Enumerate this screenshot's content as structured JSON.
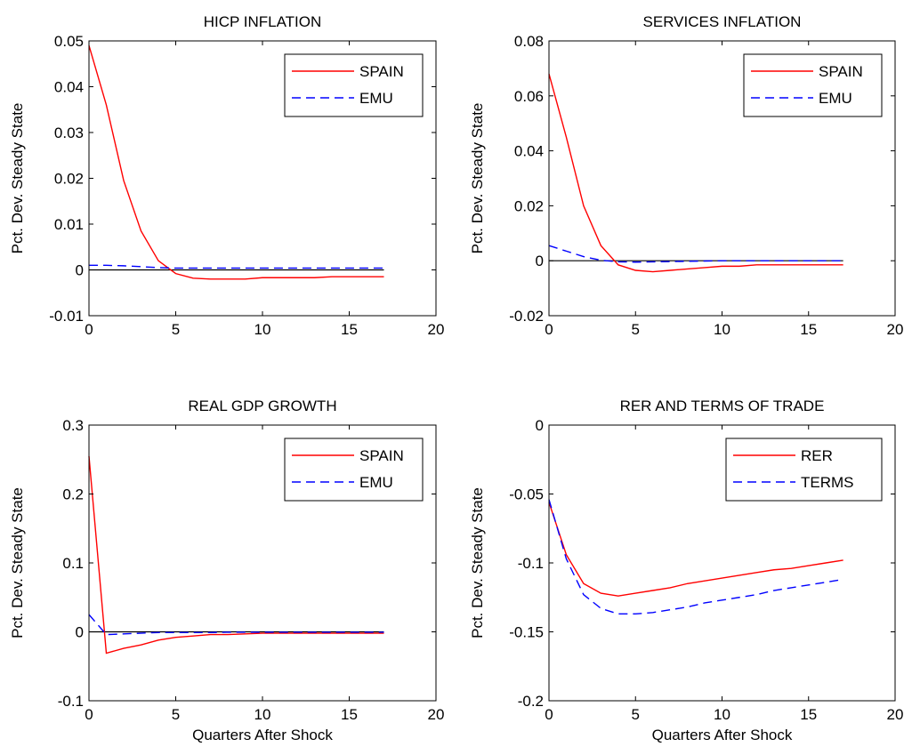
{
  "chart_data": [
    {
      "type": "line",
      "title": "HICP INFLATION",
      "xlabel": "",
      "ylabel": "Pct. Dev. Steady State",
      "xlim": [
        0,
        20
      ],
      "ylim": [
        -0.01,
        0.05
      ],
      "xticks": [
        0,
        5,
        10,
        15,
        20
      ],
      "yticks": [
        -0.01,
        0,
        0.01,
        0.02,
        0.03,
        0.04,
        0.05
      ],
      "ytick_labels": [
        "-0.01",
        "0",
        "0.01",
        "0.02",
        "0.03",
        "0.04",
        "0.05"
      ],
      "xtick_labels": [
        "0",
        "5",
        "10",
        "15",
        "20"
      ],
      "legend_position": "top-right",
      "zero_line": true,
      "x": [
        0,
        1,
        2,
        3,
        4,
        5,
        6,
        7,
        8,
        9,
        10,
        11,
        12,
        13,
        14,
        15,
        16,
        17
      ],
      "series": [
        {
          "name": "SPAIN",
          "color": "#ff0000",
          "style": "solid",
          "values": [
            0.049,
            0.036,
            0.0195,
            0.0085,
            0.002,
            -0.0008,
            -0.0018,
            -0.002,
            -0.002,
            -0.002,
            -0.0017,
            -0.0017,
            -0.0017,
            -0.0017,
            -0.0015,
            -0.0015,
            -0.0015,
            -0.0015
          ]
        },
        {
          "name": "EMU",
          "color": "#0000ff",
          "style": "dashed",
          "values": [
            0.001,
            0.001,
            0.0009,
            0.0007,
            0.0005,
            0.0004,
            0.0004,
            0.0004,
            0.0004,
            0.0004,
            0.0004,
            0.0004,
            0.0004,
            0.0004,
            0.0004,
            0.0004,
            0.0004,
            0.0004
          ]
        }
      ]
    },
    {
      "type": "line",
      "title": "SERVICES INFLATION",
      "xlabel": "",
      "ylabel": "Pct. Dev. Steady State",
      "xlim": [
        0,
        20
      ],
      "ylim": [
        -0.02,
        0.08
      ],
      "xticks": [
        0,
        5,
        10,
        15,
        20
      ],
      "yticks": [
        -0.02,
        0,
        0.02,
        0.04,
        0.06,
        0.08
      ],
      "ytick_labels": [
        "-0.02",
        "0",
        "0.02",
        "0.04",
        "0.06",
        "0.08"
      ],
      "xtick_labels": [
        "0",
        "5",
        "10",
        "15",
        "20"
      ],
      "legend_position": "top-right",
      "zero_line": true,
      "x": [
        0,
        1,
        2,
        3,
        4,
        5,
        6,
        7,
        8,
        9,
        10,
        11,
        12,
        13,
        14,
        15,
        16,
        17
      ],
      "series": [
        {
          "name": "SPAIN",
          "color": "#ff0000",
          "style": "solid",
          "values": [
            0.068,
            0.045,
            0.02,
            0.0055,
            -0.0015,
            -0.0035,
            -0.004,
            -0.0035,
            -0.003,
            -0.0025,
            -0.002,
            -0.002,
            -0.0015,
            -0.0015,
            -0.0015,
            -0.0015,
            -0.0015,
            -0.0015
          ]
        },
        {
          "name": "EMU",
          "color": "#0000ff",
          "style": "dashed",
          "values": [
            0.0055,
            0.0035,
            0.0015,
            0.0002,
            -0.0004,
            -0.0005,
            -0.0004,
            -0.0003,
            -0.0002,
            -0.0001,
            0,
            0,
            0,
            0,
            0,
            0,
            0,
            0
          ]
        }
      ]
    },
    {
      "type": "line",
      "title": "REAL GDP GROWTH",
      "xlabel": "Quarters After Shock",
      "ylabel": "Pct. Dev. Steady State",
      "xlim": [
        0,
        20
      ],
      "ylim": [
        -0.1,
        0.3
      ],
      "xticks": [
        0,
        5,
        10,
        15,
        20
      ],
      "yticks": [
        -0.1,
        0,
        0.1,
        0.2,
        0.3
      ],
      "ytick_labels": [
        "-0.1",
        "0",
        "0.1",
        "0.2",
        "0.3"
      ],
      "xtick_labels": [
        "0",
        "5",
        "10",
        "15",
        "20"
      ],
      "legend_position": "top-right",
      "zero_line": true,
      "x": [
        0,
        1,
        2,
        3,
        4,
        5,
        6,
        7,
        8,
        9,
        10,
        11,
        12,
        13,
        14,
        15,
        16,
        17
      ],
      "series": [
        {
          "name": "SPAIN",
          "color": "#ff0000",
          "style": "solid",
          "values": [
            0.255,
            -0.031,
            -0.024,
            -0.019,
            -0.012,
            -0.008,
            -0.006,
            -0.004,
            -0.004,
            -0.003,
            -0.002,
            -0.002,
            -0.002,
            -0.002,
            -0.002,
            -0.002,
            -0.002,
            -0.002
          ]
        },
        {
          "name": "EMU",
          "color": "#0000ff",
          "style": "dashed",
          "values": [
            0.025,
            -0.004,
            -0.003,
            -0.002,
            -0.001,
            -0.001,
            -0.001,
            -0.001,
            -0.0005,
            -0.0005,
            -0.0005,
            -0.0005,
            -0.0005,
            -0.0005,
            -0.0005,
            -0.0005,
            -0.0005,
            -0.0005
          ]
        }
      ]
    },
    {
      "type": "line",
      "title": "RER AND TERMS OF TRADE",
      "xlabel": "Quarters After Shock",
      "ylabel": "Pct. Dev. Steady State",
      "xlim": [
        0,
        20
      ],
      "ylim": [
        -0.2,
        0
      ],
      "xticks": [
        0,
        5,
        10,
        15,
        20
      ],
      "yticks": [
        -0.2,
        -0.15,
        -0.1,
        -0.05,
        0
      ],
      "ytick_labels": [
        "-0.2",
        "-0.15",
        "-0.1",
        "-0.05",
        "0"
      ],
      "xtick_labels": [
        "0",
        "5",
        "10",
        "15",
        "20"
      ],
      "legend_position": "top-right",
      "zero_line": false,
      "x": [
        0,
        1,
        2,
        3,
        4,
        5,
        6,
        7,
        8,
        9,
        10,
        11,
        12,
        13,
        14,
        15,
        16,
        17
      ],
      "series": [
        {
          "name": "RER",
          "color": "#ff0000",
          "style": "solid",
          "values": [
            -0.056,
            -0.094,
            -0.115,
            -0.122,
            -0.124,
            -0.122,
            -0.12,
            -0.118,
            -0.115,
            -0.113,
            -0.111,
            -0.109,
            -0.107,
            -0.105,
            -0.104,
            -0.102,
            -0.1,
            -0.098
          ]
        },
        {
          "name": "TERMS",
          "color": "#0000ff",
          "style": "dashed",
          "values": [
            -0.054,
            -0.097,
            -0.123,
            -0.133,
            -0.137,
            -0.137,
            -0.136,
            -0.134,
            -0.132,
            -0.129,
            -0.127,
            -0.125,
            -0.123,
            -0.12,
            -0.118,
            -0.116,
            -0.114,
            -0.112
          ]
        }
      ]
    }
  ]
}
